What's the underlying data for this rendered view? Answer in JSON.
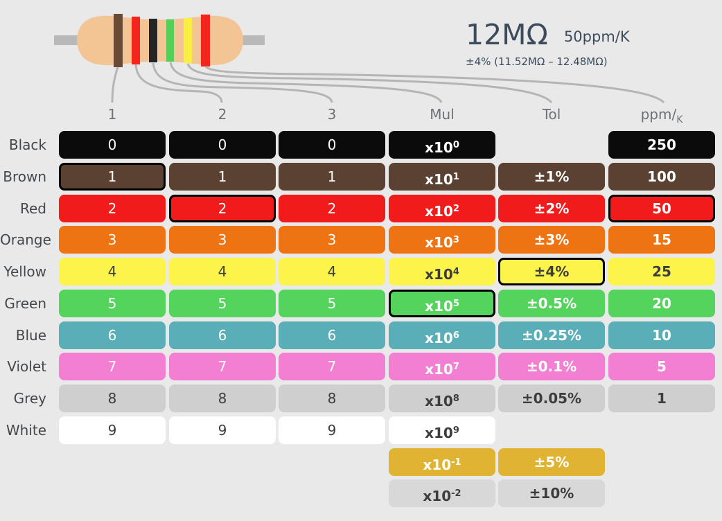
{
  "result": {
    "resistance": "12MΩ",
    "tempco": "50ppm/K",
    "range": "±4% (11.52MΩ – 12.48MΩ)"
  },
  "resistor": {
    "body_color": "#f3c594",
    "lead_color": "#b9b9b9",
    "bands": [
      "#6a4a35",
      "#f4251c",
      "#242424",
      "#56cf58",
      "#f8ef40",
      "#f4251c"
    ]
  },
  "columns": {
    "band1": "1",
    "band2": "2",
    "band3": "3",
    "multiplier": "Mul",
    "tolerance": "Tol",
    "ppm_main": "ppm/",
    "ppm_sub": "K"
  },
  "colors": {
    "black": "#0b0b0b",
    "brown": "#5a4131",
    "red": "#f11b1b",
    "orange": "#ee7413",
    "yellow": "#fcf44a",
    "green": "#54d45c",
    "blue": "#5aaeb8",
    "violet": "#f37fd2",
    "grey": "#cfcfcf",
    "white": "#ffffff",
    "gold": "#e1b332",
    "silver": "#d8d8d8"
  },
  "rows": [
    {
      "label": "Black",
      "d1": "0",
      "d2": "0",
      "d3": "0",
      "mul": "x10",
      "exp": "0",
      "tol": "",
      "ppm": "250"
    },
    {
      "label": "Brown",
      "d1": "1",
      "d2": "1",
      "d3": "1",
      "mul": "x10",
      "exp": "1",
      "tol": "±1%",
      "ppm": "100"
    },
    {
      "label": "Red",
      "d1": "2",
      "d2": "2",
      "d3": "2",
      "mul": "x10",
      "exp": "2",
      "tol": "±2%",
      "ppm": "50"
    },
    {
      "label": "Orange",
      "d1": "3",
      "d2": "3",
      "d3": "3",
      "mul": "x10",
      "exp": "3",
      "tol": "±3%",
      "ppm": "15"
    },
    {
      "label": "Yellow",
      "d1": "4",
      "d2": "4",
      "d3": "4",
      "mul": "x10",
      "exp": "4",
      "tol": "±4%",
      "ppm": "25"
    },
    {
      "label": "Green",
      "d1": "5",
      "d2": "5",
      "d3": "5",
      "mul": "x10",
      "exp": "5",
      "tol": "±0.5%",
      "ppm": "20"
    },
    {
      "label": "Blue",
      "d1": "6",
      "d2": "6",
      "d3": "6",
      "mul": "x10",
      "exp": "6",
      "tol": "±0.25%",
      "ppm": "10"
    },
    {
      "label": "Violet",
      "d1": "7",
      "d2": "7",
      "d3": "7",
      "mul": "x10",
      "exp": "7",
      "tol": "±0.1%",
      "ppm": "5"
    },
    {
      "label": "Grey",
      "d1": "8",
      "d2": "8",
      "d3": "8",
      "mul": "x10",
      "exp": "8",
      "tol": "±0.05%",
      "ppm": "1"
    },
    {
      "label": "White",
      "d1": "9",
      "d2": "9",
      "d3": "9",
      "mul": "x10",
      "exp": "9",
      "tol": "",
      "ppm": ""
    }
  ],
  "extra_rows": [
    {
      "label": "",
      "mul": "x10",
      "exp": "-1",
      "tol": "±5%"
    },
    {
      "label": "",
      "mul": "x10",
      "exp": "-2",
      "tol": "±10%"
    }
  ],
  "selection": {
    "band1": "Brown",
    "band2": "Red",
    "band3": "Black",
    "multiplier": "Green",
    "tolerance": "Yellow",
    "ppm": "Red"
  }
}
